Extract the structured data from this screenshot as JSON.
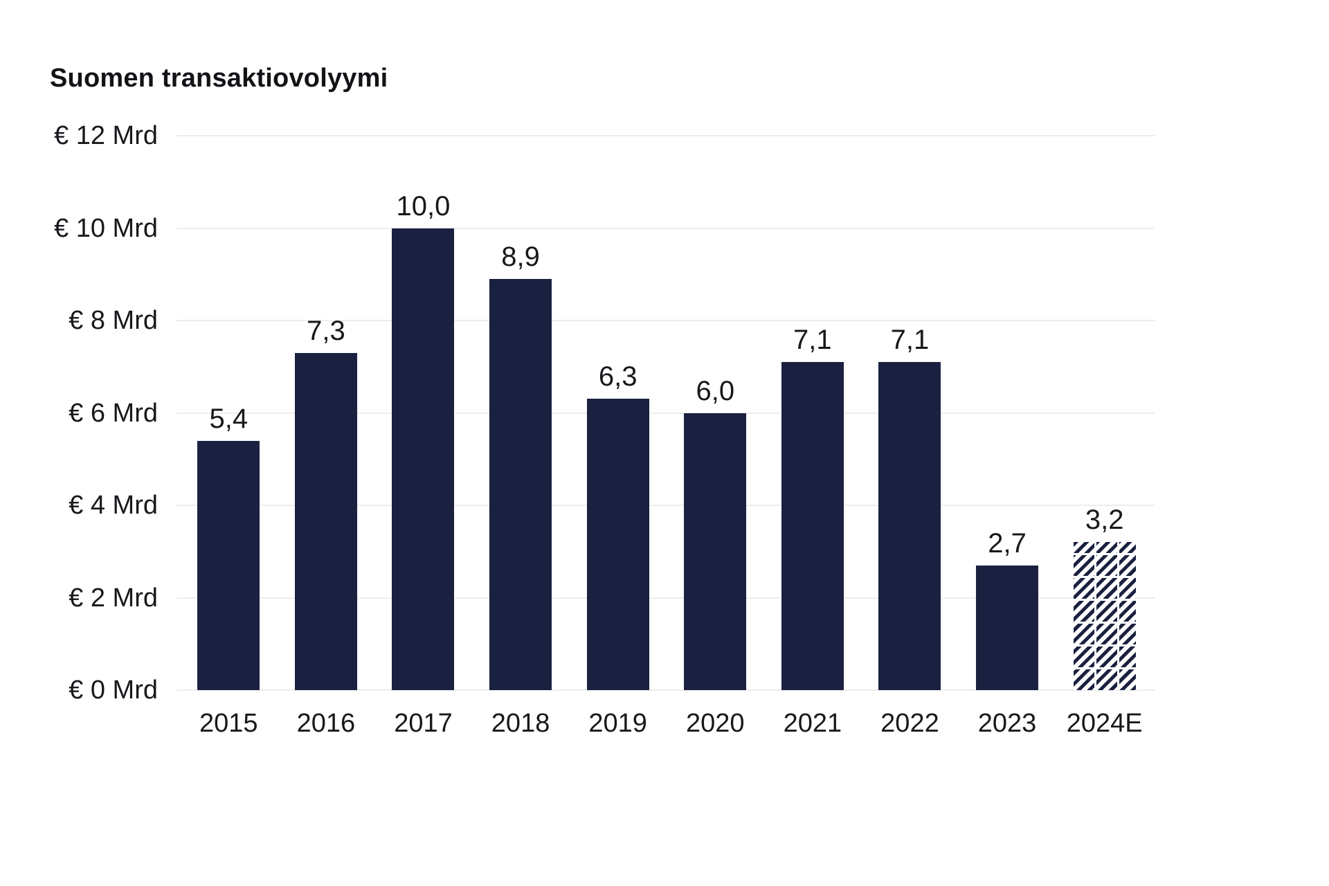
{
  "page": {
    "background": "#ffffff"
  },
  "chart_data": {
    "type": "bar",
    "title": "Suomen transaktiovolyymi",
    "categories": [
      "2015",
      "2016",
      "2017",
      "2018",
      "2019",
      "2020",
      "2021",
      "2022",
      "2023",
      "2024E"
    ],
    "values": [
      5.4,
      7.3,
      10.0,
      8.9,
      6.3,
      6.0,
      7.1,
      7.1,
      2.7,
      3.2
    ],
    "value_labels": [
      "5,4",
      "7,3",
      "10,0",
      "8,9",
      "6,3",
      "6,0",
      "7,1",
      "7,1",
      "2,7",
      "3,2"
    ],
    "y_ticks": [
      {
        "value": 12,
        "label": "€ 12 Mrd"
      },
      {
        "value": 10,
        "label": "€ 10 Mrd"
      },
      {
        "value": 8,
        "label": "€ 8 Mrd"
      },
      {
        "value": 6,
        "label": "€ 6 Mrd"
      },
      {
        "value": 4,
        "label": "€ 4 Mrd"
      },
      {
        "value": 2,
        "label": "€ 2 Mrd"
      },
      {
        "value": 0,
        "label": "€ 0 Mrd"
      }
    ],
    "ylim": [
      0,
      12
    ],
    "grid": true,
    "legend": false,
    "bar_color": "#1a2140",
    "grid_color": "#ededed",
    "text_color": "#17181c",
    "hatched_categories": [
      "2024E"
    ],
    "hatch_style": "diagonal-stripes"
  }
}
